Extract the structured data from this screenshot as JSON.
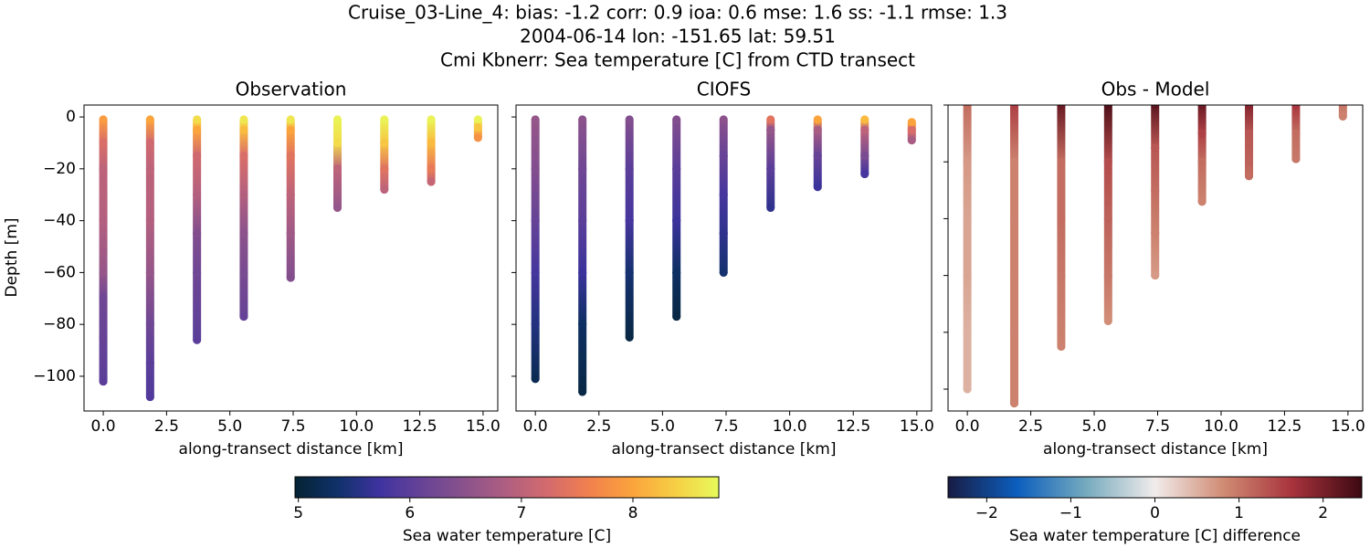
{
  "figure": {
    "title_lines": [
      "Cruise_03-Line_4: bias: -1.2  corr: 0.9  ioa: 0.6  mse: 1.6  ss: -1.1  rmse: 1.3",
      "2004-06-14 lon: -151.65 lat: 59.51",
      "Cmi Kbnerr: Sea temperature [C] from CTD transect"
    ]
  },
  "colorbars": [
    {
      "label": "Sea water temperature [C]",
      "lim": [
        4.97,
        8.77
      ],
      "ticks": [
        5,
        6,
        7,
        8
      ],
      "colors": [
        "#042333",
        "#0f3169",
        "#3f339f",
        "#674396",
        "#8a528c",
        "#b05f81",
        "#d56b6c",
        "#f2824c",
        "#fba53c",
        "#f6d045",
        "#e7fa5a"
      ]
    },
    {
      "label": "Sea water temperature [C] difference",
      "lim": [
        -2.46,
        2.46
      ],
      "ticks": [
        {
          "value": -2,
          "label": "−2"
        },
        {
          "value": -1,
          "label": "−1"
        },
        0,
        1,
        2
      ],
      "colors": [
        "#181c43",
        "#0c5ebe",
        "#75aabe",
        "#f1eceb",
        "#d08b73",
        "#a7323c",
        "#3c0912"
      ]
    }
  ],
  "chart_data": [
    {
      "type": "scatter",
      "title": "Observation",
      "xlabel": "along-transect distance [km]",
      "ylabel": "Depth [m]",
      "colorbar": 0,
      "xlim": [
        -0.76,
        15.58
      ],
      "ylim": [
        -113.4,
        4.6
      ],
      "xticks": [
        {
          "value": 0,
          "label": "0.0"
        },
        2.5,
        {
          "value": 5,
          "label": "5.0"
        },
        7.5,
        {
          "value": 10,
          "label": "10.0"
        },
        12.5,
        {
          "value": 15,
          "label": "15.0"
        }
      ],
      "yticks": [
        0,
        {
          "value": -20,
          "label": "−20"
        },
        {
          "value": -40,
          "label": "−40"
        },
        {
          "value": -60,
          "label": "−60"
        },
        {
          "value": -80,
          "label": "−80"
        },
        {
          "value": -100,
          "label": "−100"
        }
      ],
      "stations": [
        {
          "x": 0,
          "depth": [
            -1,
            -10,
            -20,
            -40,
            -60,
            -70,
            -85,
            -102
          ],
          "values": [
            7.9,
            7.3,
            7.0,
            6.9,
            6.6,
            6.2,
            6.1,
            6.0
          ]
        },
        {
          "x": 1.85,
          "depth": [
            -1,
            -10,
            -20,
            -40,
            -60,
            -80,
            -95,
            -108
          ],
          "values": [
            8.0,
            7.2,
            7.0,
            6.9,
            6.6,
            6.2,
            6.0,
            5.9
          ]
        },
        {
          "x": 3.7,
          "depth": [
            -1,
            -5,
            -15,
            -30,
            -45,
            -60,
            -86
          ],
          "values": [
            8.5,
            8.0,
            7.2,
            6.9,
            6.4,
            6.2,
            6.0
          ]
        },
        {
          "x": 5.55,
          "depth": [
            -1,
            -5,
            -15,
            -30,
            -45,
            -60,
            -77
          ],
          "values": [
            8.6,
            8.2,
            7.3,
            6.9,
            6.5,
            6.3,
            6.1
          ]
        },
        {
          "x": 7.4,
          "depth": [
            -1,
            -5,
            -15,
            -30,
            -45,
            -62
          ],
          "values": [
            8.6,
            8.0,
            7.4,
            7.0,
            6.7,
            6.4
          ]
        },
        {
          "x": 9.25,
          "depth": [
            -1,
            -10,
            -20,
            -35
          ],
          "values": [
            8.7,
            8.5,
            7.0,
            6.6
          ]
        },
        {
          "x": 11.1,
          "depth": [
            -1,
            -10,
            -20,
            -28
          ],
          "values": [
            8.7,
            8.3,
            7.4,
            7.0
          ]
        },
        {
          "x": 12.95,
          "depth": [
            -1,
            -10,
            -20,
            -25
          ],
          "values": [
            8.7,
            8.2,
            7.5,
            7.1
          ]
        },
        {
          "x": 14.8,
          "depth": [
            -1,
            -4,
            -8
          ],
          "values": [
            8.7,
            8.3,
            7.8
          ]
        }
      ]
    },
    {
      "type": "scatter",
      "title": "CIOFS",
      "xlabel": "along-transect distance [km]",
      "colorbar": 0,
      "xlim": [
        -0.76,
        15.58
      ],
      "ylim": [
        -113.4,
        4.6
      ],
      "xticks": [
        {
          "value": 0,
          "label": "0.0"
        },
        2.5,
        {
          "value": 5,
          "label": "5.0"
        },
        7.5,
        {
          "value": 10,
          "label": "10.0"
        },
        12.5,
        {
          "value": 15,
          "label": "15.0"
        }
      ],
      "stations": [
        {
          "x": 0,
          "depth": [
            -1,
            -20,
            -40,
            -60,
            -80,
            -101
          ],
          "values": [
            6.6,
            6.4,
            6.1,
            5.8,
            5.5,
            5.2
          ]
        },
        {
          "x": 1.85,
          "depth": [
            -1,
            -20,
            -40,
            -60,
            -80,
            -106
          ],
          "values": [
            6.5,
            6.2,
            6.0,
            5.7,
            5.3,
            5.1
          ]
        },
        {
          "x": 3.7,
          "depth": [
            -1,
            -20,
            -40,
            -60,
            -85
          ],
          "values": [
            6.4,
            6.0,
            5.8,
            5.4,
            5.1
          ]
        },
        {
          "x": 5.55,
          "depth": [
            -1,
            -20,
            -40,
            -60,
            -77
          ],
          "values": [
            6.4,
            6.0,
            5.7,
            5.3,
            5.1
          ]
        },
        {
          "x": 7.4,
          "depth": [
            -1,
            -15,
            -30,
            -45,
            -60
          ],
          "values": [
            6.5,
            6.1,
            5.8,
            5.6,
            5.4
          ]
        },
        {
          "x": 9.25,
          "depth": [
            -1,
            -5,
            -20,
            -35
          ],
          "values": [
            7.4,
            6.6,
            6.0,
            5.6
          ]
        },
        {
          "x": 11.1,
          "depth": [
            -1,
            -5,
            -15,
            -27
          ],
          "values": [
            8.0,
            6.8,
            6.1,
            5.7
          ]
        },
        {
          "x": 12.95,
          "depth": [
            -1,
            -5,
            -15,
            -22
          ],
          "values": [
            8.2,
            7.0,
            6.3,
            5.8
          ]
        },
        {
          "x": 14.8,
          "depth": [
            -2,
            -5,
            -9
          ],
          "values": [
            8.0,
            7.3,
            6.8
          ]
        }
      ]
    },
    {
      "type": "scatter",
      "title": "Obs - Model",
      "xlabel": "along-transect distance [km]",
      "colorbar": 1,
      "xlim": [
        -0.76,
        15.58
      ],
      "ylim": [
        -107.7,
        0
      ],
      "xticks": [
        {
          "value": 0,
          "label": "0.0"
        },
        2.5,
        {
          "value": 5,
          "label": "5.0"
        },
        7.5,
        {
          "value": 10,
          "label": "10.0"
        },
        12.5,
        {
          "value": 15,
          "label": "15.0"
        }
      ],
      "stations": [
        {
          "x": 0,
          "depth": [
            0,
            -20,
            -40,
            -60,
            -80,
            -100
          ],
          "values": [
            1.1,
            0.7,
            0.6,
            0.6,
            0.5,
            0.5
          ]
        },
        {
          "x": 1.85,
          "depth": [
            0,
            -20,
            -40,
            -60,
            -80,
            -105
          ],
          "values": [
            1.5,
            0.9,
            0.9,
            0.9,
            0.9,
            0.9
          ]
        },
        {
          "x": 3.7,
          "depth": [
            0,
            -20,
            -40,
            -60,
            -85
          ],
          "values": [
            2.1,
            1.1,
            1.1,
            1.0,
            0.9
          ]
        },
        {
          "x": 5.55,
          "depth": [
            0,
            -20,
            -40,
            -60,
            -76
          ],
          "values": [
            2.3,
            1.4,
            1.2,
            1.0,
            0.8
          ]
        },
        {
          "x": 7.4,
          "depth": [
            0,
            -15,
            -30,
            -45,
            -60
          ],
          "values": [
            2.2,
            1.3,
            1.1,
            0.9,
            0.7
          ]
        },
        {
          "x": 9.25,
          "depth": [
            0,
            -10,
            -20,
            -34
          ],
          "values": [
            2.1,
            1.5,
            1.1,
            0.9
          ]
        },
        {
          "x": 11.1,
          "depth": [
            0,
            -10,
            -20,
            -25
          ],
          "values": [
            1.9,
            1.3,
            1.2,
            1.1
          ]
        },
        {
          "x": 12.95,
          "depth": [
            0,
            -10,
            -19
          ],
          "values": [
            1.6,
            1.1,
            1.0
          ]
        },
        {
          "x": 14.8,
          "depth": [
            0,
            -4
          ],
          "values": [
            1.0,
            0.9
          ]
        }
      ]
    }
  ]
}
